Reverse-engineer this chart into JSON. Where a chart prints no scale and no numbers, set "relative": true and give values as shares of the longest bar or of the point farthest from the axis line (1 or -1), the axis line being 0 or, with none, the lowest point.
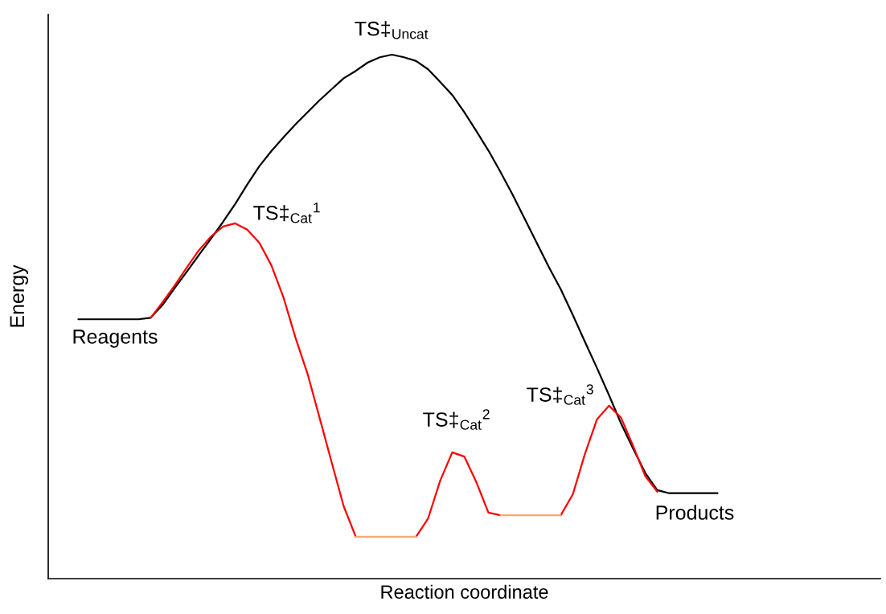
{
  "chart_data": {
    "type": "line",
    "relative": true,
    "xlabel": "Reaction coordinate",
    "ylabel": "Energy",
    "line_style": "solid",
    "categories": [
      null,
      null,
      null,
      null,
      null,
      null,
      null,
      null,
      null,
      null,
      null,
      null,
      null,
      null,
      null,
      null,
      null,
      null,
      null,
      null,
      null,
      null,
      null,
      null,
      null,
      null,
      null,
      null,
      null,
      null,
      null,
      null,
      null,
      null,
      null,
      null,
      null,
      null,
      null,
      null,
      null,
      null,
      null,
      null,
      null,
      null,
      null,
      null,
      null,
      null,
      null,
      null,
      null,
      null,
      null,
      null,
      null,
      null,
      null,
      null,
      null,
      null,
      null,
      null,
      null,
      null,
      null,
      null,
      null
    ],
    "series": [
      {
        "color": "#000000",
        "values": [
          null,
          null,
          0.495,
          0.495,
          0.495,
          0.495,
          0.495,
          0.495,
          0.498,
          0.523,
          0.555,
          0.586,
          0.618,
          0.649,
          0.681,
          0.715,
          0.752,
          0.787,
          0.816,
          0.842,
          0.867,
          0.89,
          0.913,
          0.934,
          0.955,
          0.969,
          0.985,
          0.995,
          1,
          0.995,
          0.988,
          0.972,
          0.948,
          0.923,
          0.89,
          0.854,
          0.817,
          0.776,
          0.733,
          0.687,
          0.641,
          0.595,
          0.552,
          0.503,
          0.452,
          0.402,
          0.35,
          0.296,
          0.248,
          0.202,
          0.169,
          0.163,
          0.163,
          0.163,
          0.163,
          0.163,
          null,
          null,
          null,
          null,
          null,
          null,
          null,
          null,
          null,
          null,
          null,
          null,
          null
        ]
      },
      {
        "color": "#ff0000",
        "values": [
          null,
          null,
          null,
          null,
          null,
          null,
          null,
          null,
          0.498,
          0.528,
          0.56,
          0.594,
          0.627,
          0.653,
          0.672,
          0.678,
          0.666,
          0.641,
          0.598,
          0.537,
          0.46,
          0.391,
          0.307,
          0.222,
          0.138,
          0.08,
          null,
          null,
          null,
          null,
          0.08,
          0.115,
          0.187,
          0.241,
          0.233,
          0.184,
          0.126,
          0.121,
          null,
          null,
          null,
          null,
          0.121,
          0.161,
          0.238,
          0.304,
          0.33,
          0.307,
          0.253,
          0.196,
          0.166,
          null,
          null,
          null,
          null,
          null,
          null,
          null,
          null,
          null,
          null,
          null,
          null,
          null,
          null,
          null,
          null,
          null,
          null
        ]
      },
      {
        "color": "#f4a878",
        "values": [
          null,
          null,
          null,
          null,
          null,
          null,
          null,
          null,
          null,
          null,
          null,
          null,
          null,
          null,
          null,
          null,
          null,
          null,
          null,
          null,
          null,
          null,
          null,
          null,
          null,
          0.08,
          0.08,
          0.08,
          0.08,
          0.08,
          0.08,
          null,
          null,
          null,
          null,
          null,
          null,
          0.121,
          0.121,
          0.121,
          0.121,
          0.121,
          0.121,
          null,
          null,
          null,
          null,
          null,
          null,
          null,
          null,
          null,
          null,
          null,
          null,
          null,
          null,
          null,
          null,
          null,
          null,
          null,
          null,
          null,
          null,
          null,
          null,
          null,
          null
        ]
      }
    ],
    "annotations": [
      "TS‡$_{Uncat}$",
      "TS‡$_{Cat}$$^{1}$",
      "TS‡$_{Cat}$$^{2}$",
      "TS‡$_{Cat}$$^{3}$",
      "Reagents",
      "Products"
    ]
  }
}
